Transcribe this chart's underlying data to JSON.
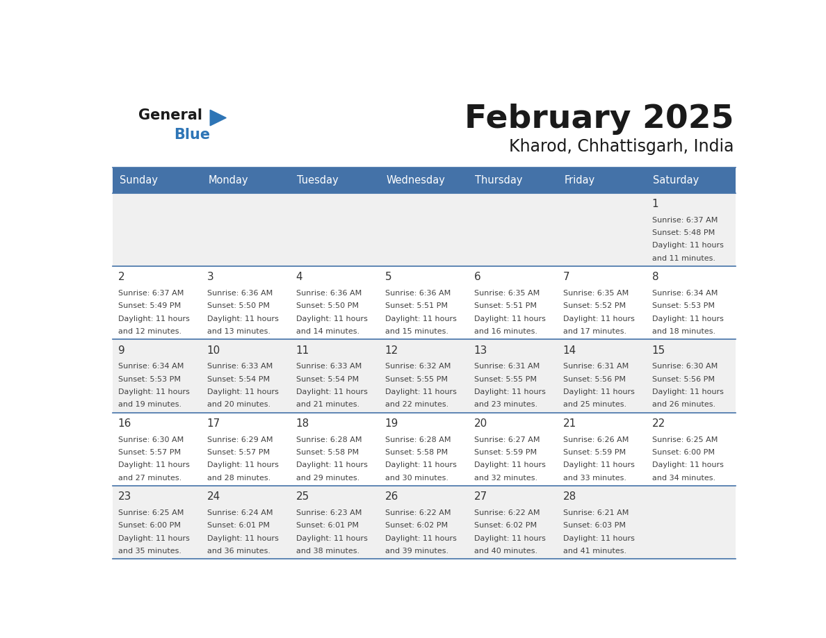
{
  "title": "February 2025",
  "subtitle": "Kharod, Chhattisgarh, India",
  "days_of_week": [
    "Sunday",
    "Monday",
    "Tuesday",
    "Wednesday",
    "Thursday",
    "Friday",
    "Saturday"
  ],
  "header_bg": "#4472a8",
  "header_text": "#ffffff",
  "cell_bg_odd": "#f0f0f0",
  "cell_bg_even": "#ffffff",
  "border_color": "#4472a8",
  "text_color": "#404040",
  "day_number_color": "#333333",
  "logo_color_general": "#1a1a1a",
  "logo_color_blue": "#2e75b6",
  "calendar_data": [
    [
      null,
      null,
      null,
      null,
      null,
      null,
      {
        "day": 1,
        "sunrise": "6:37 AM",
        "sunset": "5:48 PM",
        "daylight": "11 hours and 11 minutes."
      }
    ],
    [
      {
        "day": 2,
        "sunrise": "6:37 AM",
        "sunset": "5:49 PM",
        "daylight": "11 hours and 12 minutes."
      },
      {
        "day": 3,
        "sunrise": "6:36 AM",
        "sunset": "5:50 PM",
        "daylight": "11 hours and 13 minutes."
      },
      {
        "day": 4,
        "sunrise": "6:36 AM",
        "sunset": "5:50 PM",
        "daylight": "11 hours and 14 minutes."
      },
      {
        "day": 5,
        "sunrise": "6:36 AM",
        "sunset": "5:51 PM",
        "daylight": "11 hours and 15 minutes."
      },
      {
        "day": 6,
        "sunrise": "6:35 AM",
        "sunset": "5:51 PM",
        "daylight": "11 hours and 16 minutes."
      },
      {
        "day": 7,
        "sunrise": "6:35 AM",
        "sunset": "5:52 PM",
        "daylight": "11 hours and 17 minutes."
      },
      {
        "day": 8,
        "sunrise": "6:34 AM",
        "sunset": "5:53 PM",
        "daylight": "11 hours and 18 minutes."
      }
    ],
    [
      {
        "day": 9,
        "sunrise": "6:34 AM",
        "sunset": "5:53 PM",
        "daylight": "11 hours and 19 minutes."
      },
      {
        "day": 10,
        "sunrise": "6:33 AM",
        "sunset": "5:54 PM",
        "daylight": "11 hours and 20 minutes."
      },
      {
        "day": 11,
        "sunrise": "6:33 AM",
        "sunset": "5:54 PM",
        "daylight": "11 hours and 21 minutes."
      },
      {
        "day": 12,
        "sunrise": "6:32 AM",
        "sunset": "5:55 PM",
        "daylight": "11 hours and 22 minutes."
      },
      {
        "day": 13,
        "sunrise": "6:31 AM",
        "sunset": "5:55 PM",
        "daylight": "11 hours and 23 minutes."
      },
      {
        "day": 14,
        "sunrise": "6:31 AM",
        "sunset": "5:56 PM",
        "daylight": "11 hours and 25 minutes."
      },
      {
        "day": 15,
        "sunrise": "6:30 AM",
        "sunset": "5:56 PM",
        "daylight": "11 hours and 26 minutes."
      }
    ],
    [
      {
        "day": 16,
        "sunrise": "6:30 AM",
        "sunset": "5:57 PM",
        "daylight": "11 hours and 27 minutes."
      },
      {
        "day": 17,
        "sunrise": "6:29 AM",
        "sunset": "5:57 PM",
        "daylight": "11 hours and 28 minutes."
      },
      {
        "day": 18,
        "sunrise": "6:28 AM",
        "sunset": "5:58 PM",
        "daylight": "11 hours and 29 minutes."
      },
      {
        "day": 19,
        "sunrise": "6:28 AM",
        "sunset": "5:58 PM",
        "daylight": "11 hours and 30 minutes."
      },
      {
        "day": 20,
        "sunrise": "6:27 AM",
        "sunset": "5:59 PM",
        "daylight": "11 hours and 32 minutes."
      },
      {
        "day": 21,
        "sunrise": "6:26 AM",
        "sunset": "5:59 PM",
        "daylight": "11 hours and 33 minutes."
      },
      {
        "day": 22,
        "sunrise": "6:25 AM",
        "sunset": "6:00 PM",
        "daylight": "11 hours and 34 minutes."
      }
    ],
    [
      {
        "day": 23,
        "sunrise": "6:25 AM",
        "sunset": "6:00 PM",
        "daylight": "11 hours and 35 minutes."
      },
      {
        "day": 24,
        "sunrise": "6:24 AM",
        "sunset": "6:01 PM",
        "daylight": "11 hours and 36 minutes."
      },
      {
        "day": 25,
        "sunrise": "6:23 AM",
        "sunset": "6:01 PM",
        "daylight": "11 hours and 38 minutes."
      },
      {
        "day": 26,
        "sunrise": "6:22 AM",
        "sunset": "6:02 PM",
        "daylight": "11 hours and 39 minutes."
      },
      {
        "day": 27,
        "sunrise": "6:22 AM",
        "sunset": "6:02 PM",
        "daylight": "11 hours and 40 minutes."
      },
      {
        "day": 28,
        "sunrise": "6:21 AM",
        "sunset": "6:03 PM",
        "daylight": "11 hours and 41 minutes."
      },
      null
    ]
  ]
}
